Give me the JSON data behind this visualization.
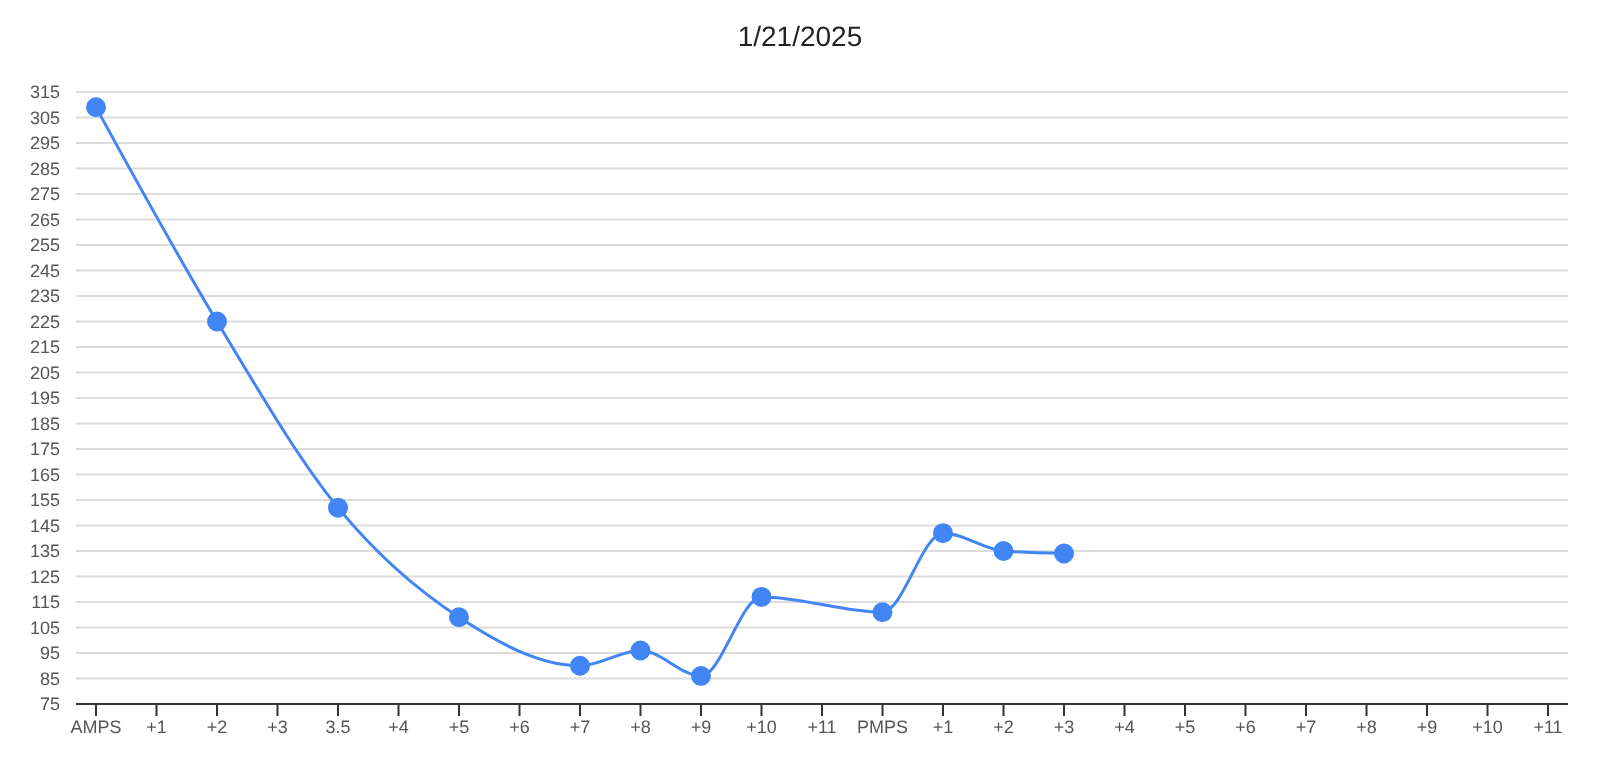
{
  "chart_data": {
    "type": "line",
    "title": "1/21/2025",
    "categories": [
      "AMPS",
      "+1",
      "+2",
      "+3",
      "3.5",
      "+4",
      "+5",
      "+6",
      "+7",
      "+8",
      "+9",
      "+10",
      "+11",
      "PMPS",
      "+1",
      "+2",
      "+3",
      "+4",
      "+5",
      "+6",
      "+7",
      "+8",
      "+9",
      "+10",
      "+11"
    ],
    "series": [
      {
        "color": "#4285f4",
        "values": [
          309,
          null,
          225,
          null,
          152,
          null,
          109,
          null,
          90,
          96,
          86,
          117,
          null,
          111,
          142,
          135,
          134,
          null,
          null,
          null,
          null,
          null,
          null,
          null,
          null
        ]
      }
    ],
    "ylim": [
      75,
      315
    ],
    "yticks": [
      75,
      85,
      95,
      105,
      115,
      125,
      135,
      145,
      155,
      165,
      175,
      185,
      195,
      205,
      215,
      225,
      235,
      245,
      255,
      265,
      275,
      285,
      295,
      305,
      315
    ],
    "grid": "y",
    "marker": "circle",
    "legend": false
  }
}
